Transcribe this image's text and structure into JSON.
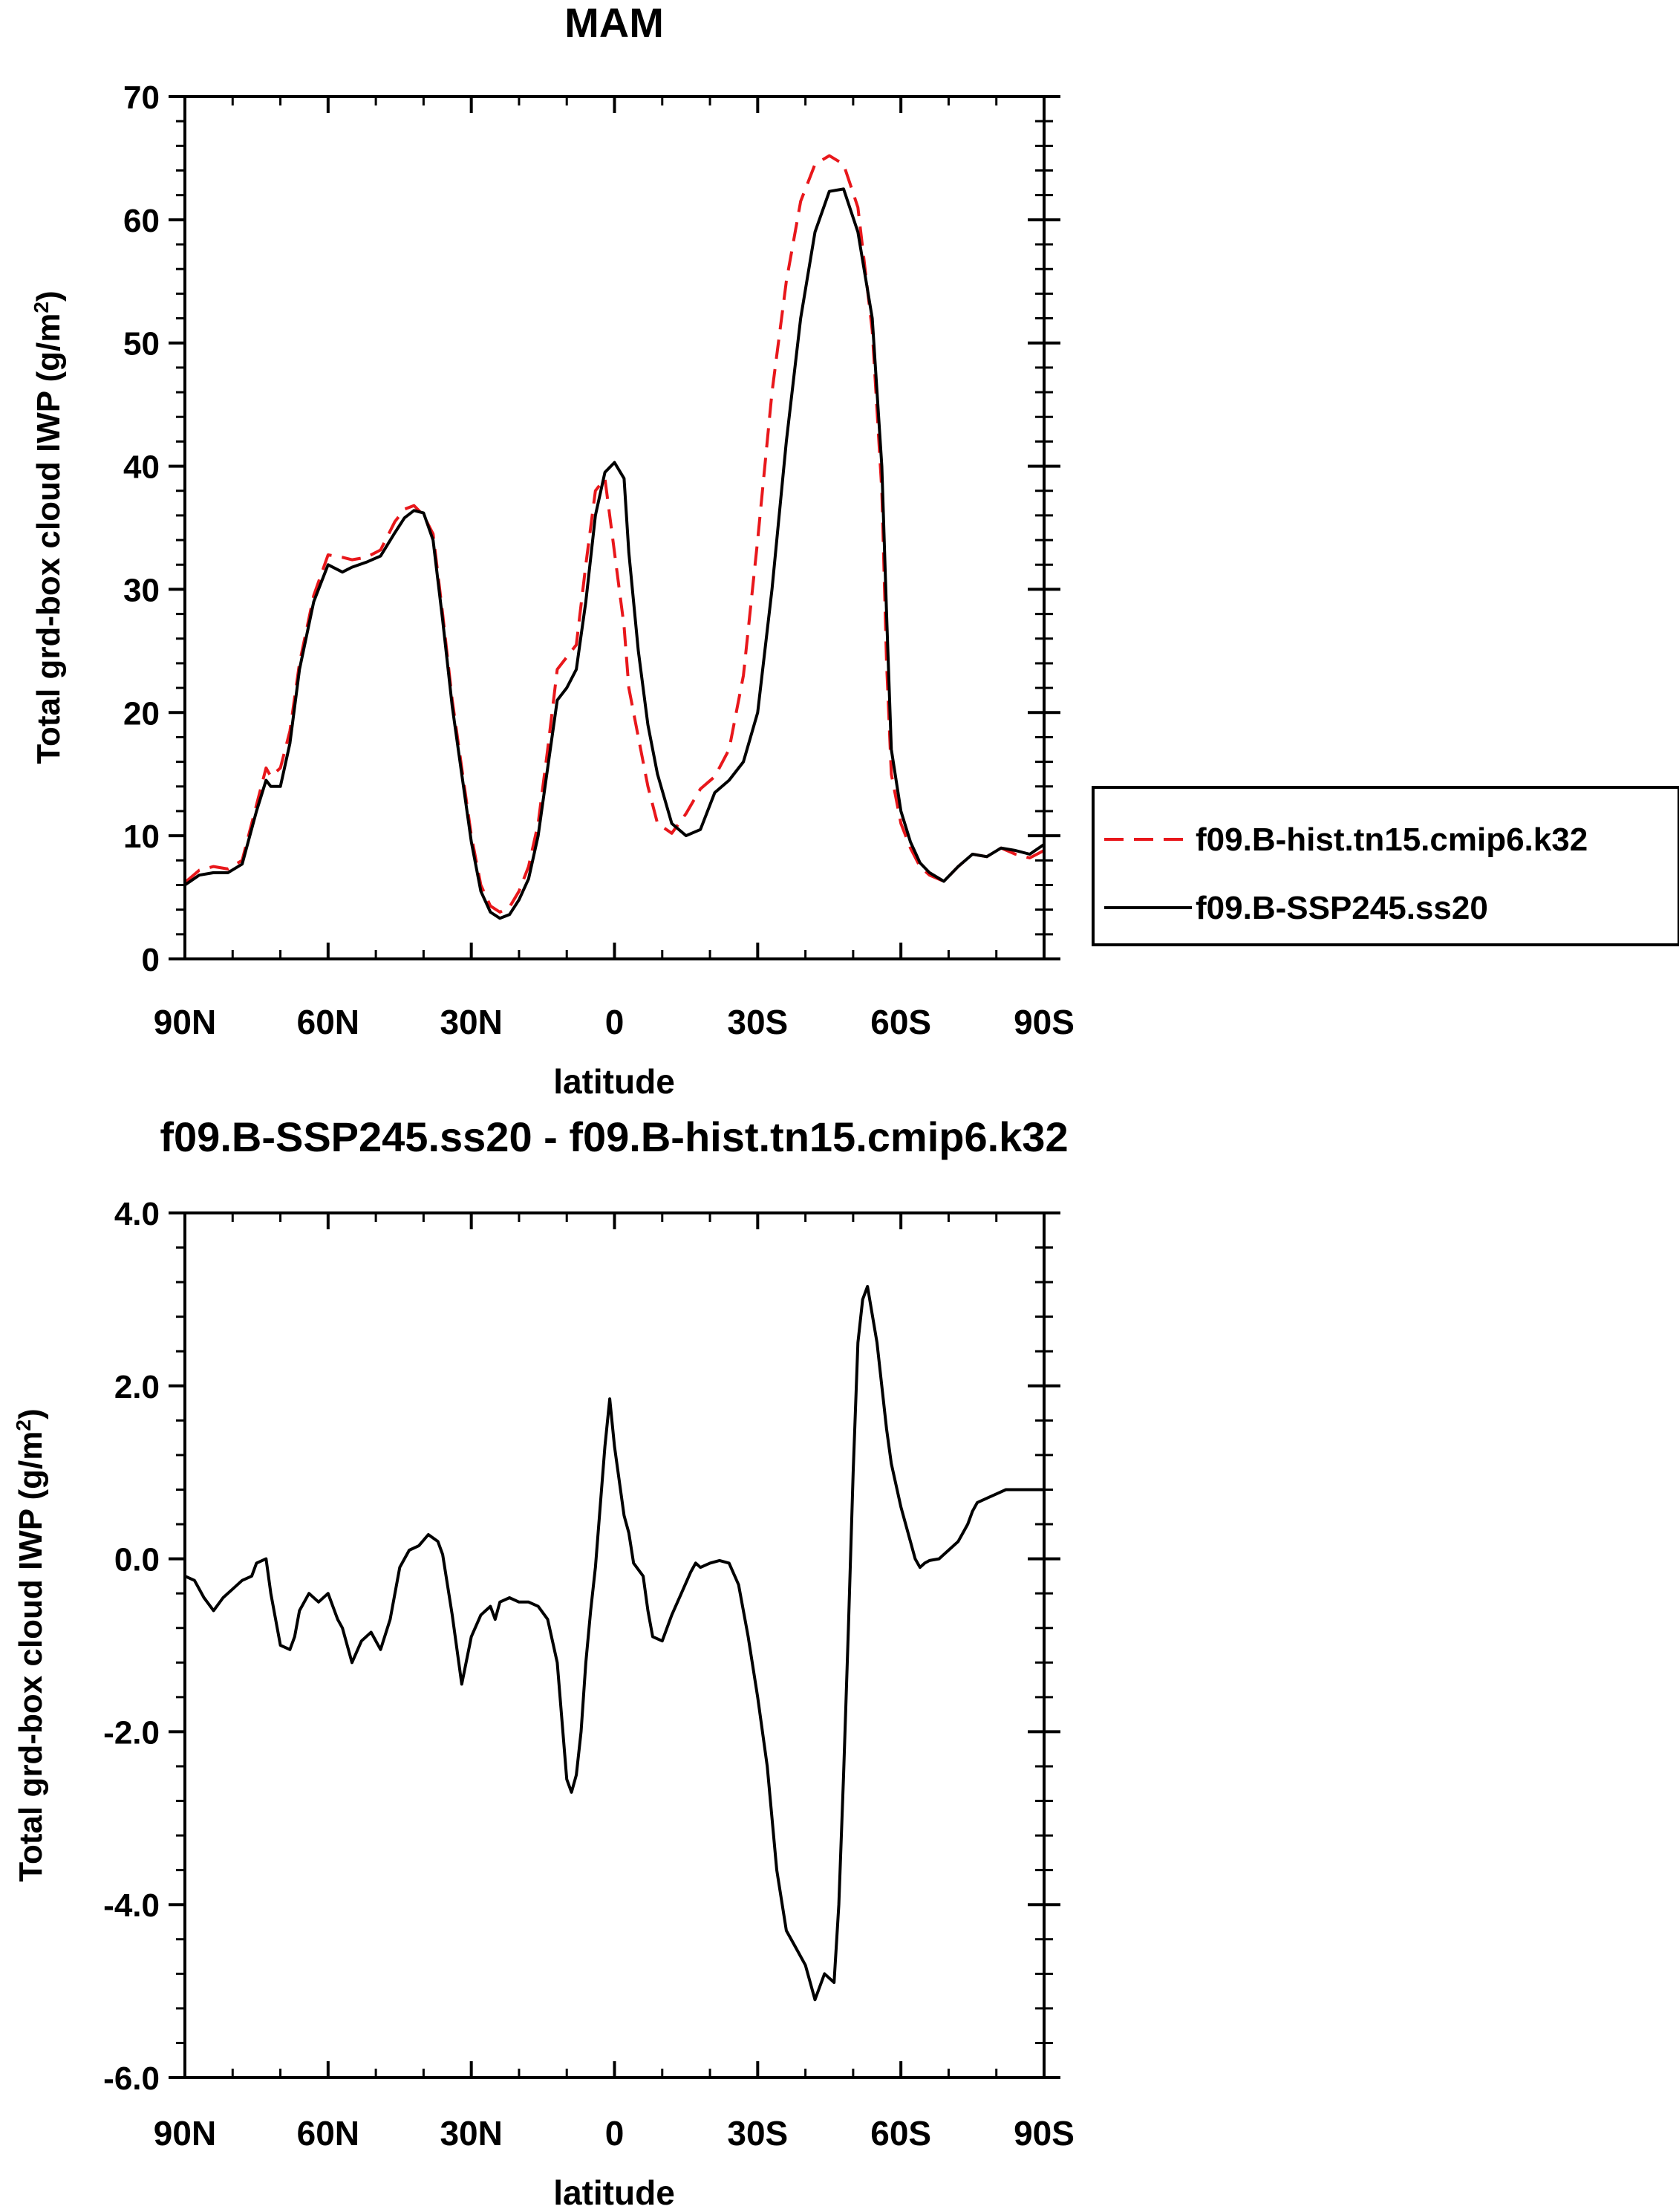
{
  "chart_data": [
    {
      "type": "line",
      "title": "MAM",
      "xlabel": "latitude",
      "ylabel": "Total grd-box cloud IWP (g/m",
      "ylabel_sup": "2",
      "ylabel_close": ")",
      "xlim": [
        90,
        -90
      ],
      "ylim": [
        0,
        70
      ],
      "x_ticks": [
        90,
        60,
        30,
        0,
        -30,
        -60,
        -90
      ],
      "x_tick_labels": [
        "90N",
        "60N",
        "30N",
        "0",
        "30S",
        "60S",
        "90S"
      ],
      "y_ticks": [
        0,
        10,
        20,
        30,
        40,
        50,
        60,
        70
      ],
      "y_tick_labels": [
        "0",
        "10",
        "20",
        "30",
        "40",
        "50",
        "60",
        "70"
      ],
      "legend_position": "right",
      "series": [
        {
          "name": "f09.B-hist.tn15.cmip6.k32",
          "color": "#e8171b",
          "style": "dashed",
          "x": [
            90,
            87,
            84,
            81,
            78,
            75,
            73,
            72,
            70,
            68,
            66,
            63,
            60,
            57,
            55,
            52,
            49,
            46,
            44,
            42,
            40,
            38,
            36,
            34,
            32,
            30,
            28,
            26,
            24,
            22,
            20,
            18,
            16,
            14,
            12,
            10,
            8,
            6,
            4,
            2,
            0,
            -2,
            -3,
            -5,
            -7,
            -9,
            -12,
            -15,
            -18,
            -21,
            -24,
            -27,
            -30,
            -33,
            -36,
            -39,
            -42,
            -45,
            -48,
            -51,
            -54,
            -56,
            -57,
            -58,
            -60,
            -62,
            -64,
            -66,
            -69,
            -72,
            -75,
            -78,
            -81,
            -84,
            -87,
            -90
          ],
          "y": [
            6.2,
            7.2,
            7.5,
            7.3,
            8.0,
            12.5,
            15.5,
            14.8,
            15.5,
            18.5,
            24,
            29.5,
            32.8,
            32.6,
            32.4,
            32.6,
            33.2,
            35.5,
            36.5,
            36.8,
            36.0,
            34.5,
            28.0,
            21.0,
            15.5,
            10.0,
            6.0,
            4.3,
            3.8,
            4.2,
            5.5,
            7.5,
            11.0,
            17.0,
            23.5,
            24.5,
            25.5,
            32.0,
            38.0,
            39.0,
            33.0,
            27.0,
            22.0,
            18.0,
            14.0,
            11.0,
            10.2,
            11.8,
            13.8,
            14.8,
            17.0,
            23.0,
            34.0,
            46.0,
            55.0,
            61.5,
            64.5,
            65.2,
            64.5,
            61.0,
            51.0,
            38.0,
            24.0,
            15.0,
            11.0,
            9.0,
            7.5,
            6.8,
            6.3,
            7.5,
            8.5,
            8.3,
            9.0,
            8.5,
            8.2,
            8.8
          ]
        },
        {
          "name": "f09.B-SSP245.ss20",
          "color": "#000000",
          "style": "solid",
          "x": [
            90,
            87,
            84,
            81,
            78,
            75,
            73,
            72,
            70,
            68,
            66,
            63,
            60,
            57,
            55,
            52,
            49,
            46,
            44,
            42,
            40,
            38,
            36,
            34,
            32,
            30,
            28,
            26,
            24,
            22,
            20,
            18,
            16,
            14,
            12,
            10,
            8,
            6,
            4,
            2,
            0,
            -2,
            -3,
            -5,
            -7,
            -9,
            -12,
            -15,
            -18,
            -21,
            -24,
            -27,
            -30,
            -33,
            -36,
            -39,
            -42,
            -45,
            -48,
            -51,
            -54,
            -56,
            -57,
            -58,
            -60,
            -62,
            -64,
            -66,
            -69,
            -72,
            -75,
            -78,
            -81,
            -84,
            -87,
            -90
          ],
          "y": [
            6.0,
            6.8,
            7.0,
            7.0,
            7.7,
            12.0,
            14.5,
            14.0,
            14.0,
            17.5,
            23.5,
            29.0,
            32.0,
            31.4,
            31.8,
            32.2,
            32.7,
            34.6,
            35.8,
            36.4,
            36.2,
            34.0,
            27.5,
            20.5,
            15.0,
            9.5,
            5.5,
            3.8,
            3.3,
            3.6,
            4.8,
            6.5,
            10.0,
            15.5,
            21.0,
            22.0,
            23.5,
            29.0,
            36.0,
            39.5,
            40.3,
            39.0,
            33.0,
            25.0,
            19.0,
            15.0,
            11.0,
            10.0,
            10.5,
            13.5,
            14.5,
            16.0,
            20.0,
            30.0,
            42.0,
            52.0,
            59.0,
            62.3,
            62.5,
            59.0,
            52.0,
            40.0,
            28.0,
            17.0,
            12.0,
            9.5,
            7.8,
            7.0,
            6.3,
            7.5,
            8.5,
            8.3,
            9.0,
            8.8,
            8.5,
            9.3
          ]
        }
      ]
    },
    {
      "type": "line",
      "title": "f09.B-SSP245.ss20 - f09.B-hist.tn15.cmip6.k32",
      "xlabel": "latitude",
      "ylabel": "Total grd-box cloud IWP (g/m",
      "ylabel_sup": "2",
      "ylabel_close": ")",
      "xlim": [
        90,
        -90
      ],
      "ylim": [
        -6.0,
        4.0
      ],
      "x_ticks": [
        90,
        60,
        30,
        0,
        -30,
        -60,
        -90
      ],
      "x_tick_labels": [
        "90N",
        "60N",
        "30N",
        "0",
        "30S",
        "60S",
        "90S"
      ],
      "y_ticks": [
        -6,
        -4,
        -2,
        0,
        2,
        4
      ],
      "y_tick_labels": [
        "-6.0",
        "-4.0",
        "-2.0",
        "0.0",
        "2.0",
        "4.0"
      ],
      "series": [
        {
          "color": "#000000",
          "style": "solid",
          "x": [
            90,
            88,
            86,
            84,
            82,
            80,
            78,
            76,
            75,
            73,
            72,
            70,
            68,
            67,
            66,
            64,
            62,
            60,
            58,
            57,
            55,
            53,
            51,
            49,
            47,
            45,
            43,
            41,
            39,
            37,
            36,
            34,
            32,
            30,
            28,
            27,
            26,
            25,
            24,
            22,
            20,
            18,
            16,
            14,
            12,
            10,
            9,
            8,
            7,
            6,
            5,
            4,
            2,
            1,
            0,
            -2,
            -3,
            -4,
            -6,
            -7,
            -8,
            -10,
            -12,
            -14,
            -16,
            -17,
            -18,
            -20,
            -22,
            -24,
            -26,
            -28,
            -30,
            -32,
            -34,
            -36,
            -38,
            -40,
            -42,
            -44,
            -46,
            -47,
            -48,
            -49,
            -50,
            -51,
            -52,
            -53,
            -55,
            -57,
            -58,
            -60,
            -62,
            -63,
            -64,
            -65,
            -66,
            -68,
            -70,
            -72,
            -74,
            -75,
            -76,
            -78,
            -80,
            -82,
            -84,
            -86,
            -88,
            -90
          ],
          "y": [
            -0.2,
            -0.25,
            -0.45,
            -0.6,
            -0.45,
            -0.35,
            -0.25,
            -0.2,
            -0.05,
            0.0,
            -0.4,
            -1.0,
            -1.05,
            -0.9,
            -0.6,
            -0.4,
            -0.5,
            -0.4,
            -0.7,
            -0.8,
            -1.2,
            -0.95,
            -0.85,
            -1.05,
            -0.7,
            -0.1,
            0.1,
            0.15,
            0.28,
            0.2,
            0.05,
            -0.65,
            -1.45,
            -0.9,
            -0.65,
            -0.6,
            -0.55,
            -0.7,
            -0.5,
            -0.45,
            -0.5,
            -0.5,
            -0.55,
            -0.7,
            -1.2,
            -2.55,
            -2.7,
            -2.5,
            -2.0,
            -1.2,
            -0.6,
            -0.1,
            1.3,
            1.85,
            1.3,
            0.5,
            0.3,
            -0.05,
            -0.2,
            -0.6,
            -0.9,
            -0.95,
            -0.65,
            -0.4,
            -0.15,
            -0.05,
            -0.1,
            -0.05,
            -0.02,
            -0.05,
            -0.3,
            -0.9,
            -1.6,
            -2.4,
            -3.6,
            -4.3,
            -4.5,
            -4.7,
            -5.1,
            -4.8,
            -4.9,
            -4.0,
            -2.5,
            -0.8,
            1.0,
            2.5,
            3.0,
            3.15,
            2.5,
            1.5,
            1.1,
            0.6,
            0.2,
            0.0,
            -0.1,
            -0.05,
            -0.02,
            0.0,
            0.1,
            0.2,
            0.4,
            0.55,
            0.65,
            0.7,
            0.75,
            0.8,
            0.8,
            0.8,
            0.8,
            0.8
          ]
        }
      ]
    }
  ]
}
